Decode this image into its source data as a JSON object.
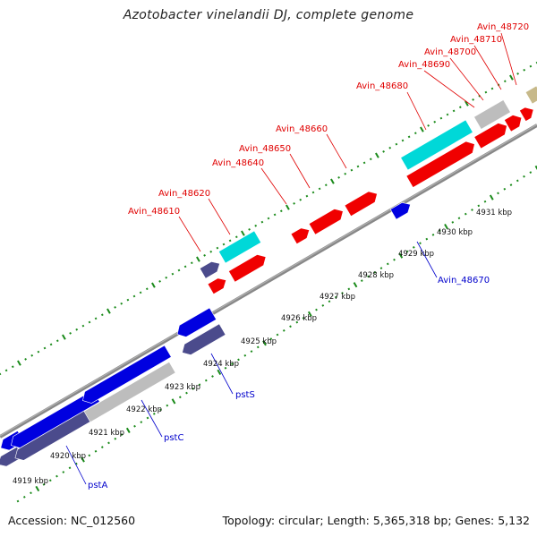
{
  "title": "Azotobacter vinelandii DJ, complete genome",
  "footer": {
    "accession": "Accession: NC_012560",
    "summary": "Topology: circular; Length: 5,365,318 bp; Genes: 5,132"
  },
  "scale": {
    "unit": "kbp",
    "ticks": [
      "4919 kbp",
      "4920 kbp",
      "4921 kbp",
      "4922 kbp",
      "4923 kbp",
      "4924 kbp",
      "4925 kbp",
      "4926 kbp",
      "4927 kbp",
      "4928 kbp",
      "4929 kbp",
      "4930 kbp",
      "4931 kbp"
    ]
  },
  "labels": {
    "forward": [
      "Avin_48720",
      "Avin_48710",
      "Avin_48700",
      "Avin_48690",
      "Avin_48680",
      "Avin_48660",
      "Avin_48650",
      "Avin_48640",
      "Avin_48620",
      "Avin_48610"
    ],
    "reverse": [
      "Avin_48670",
      "pstS",
      "pstC",
      "pstA"
    ]
  },
  "colors": {
    "cds": "#f00000",
    "trna_or_other": "#00d8d8",
    "gray_feature": "#bdbdbd",
    "blue_feature": "#0000e0",
    "slate_feature": "#4b4b8c",
    "tan_feature": "#c7b98a",
    "backbone": "#8c8c8c",
    "forward_label": "#e00000",
    "reverse_label": "#0000cc",
    "gc_marks": "#1a8a1a"
  }
}
